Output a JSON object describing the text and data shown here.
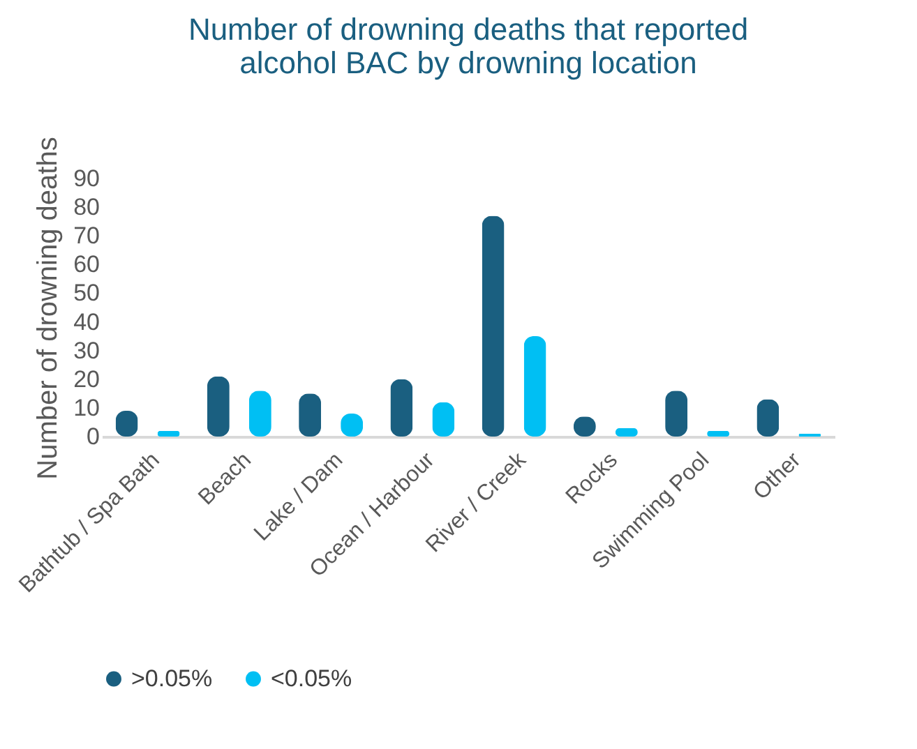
{
  "chart_data": {
    "type": "bar",
    "title": "Number of drowning deaths that reported\nalcohol BAC by drowning location",
    "ylabel": "Number of drowning deaths",
    "categories": [
      "Bathtub / Spa Bath",
      "Beach",
      "Lake / Dam",
      "Ocean / Harbour",
      "River / Creek",
      "Rocks",
      "Swimming Pool",
      "Other"
    ],
    "series": [
      {
        "name": ">0.05%",
        "color": "#1a5f80",
        "values": [
          9,
          21,
          15,
          20,
          77,
          7,
          16,
          13
        ]
      },
      {
        "name": "<0.05%",
        "color": "#00bff3",
        "values": [
          2,
          16,
          8,
          12,
          35,
          3,
          2,
          1
        ]
      }
    ],
    "ylim": [
      0,
      90
    ],
    "yticks": [
      0,
      10,
      20,
      30,
      40,
      50,
      60,
      70,
      80,
      90
    ],
    "grid": false,
    "legend": "bottom"
  }
}
